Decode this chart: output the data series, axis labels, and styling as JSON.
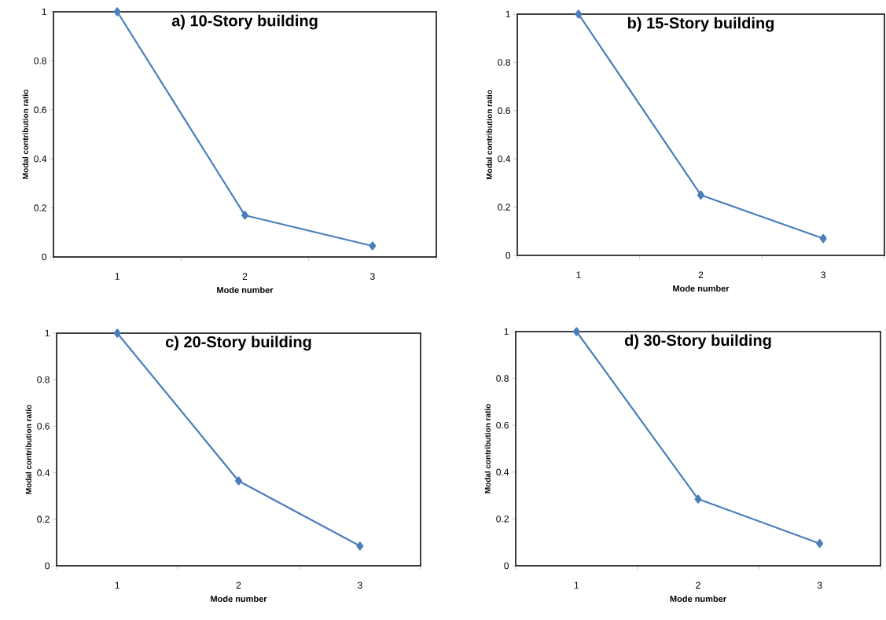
{
  "chart_data": [
    {
      "type": "line",
      "title": "a) 10-Story building",
      "xlabel": "Mode number",
      "ylabel": "Modal contribution ratio",
      "categories": [
        "1",
        "2",
        "3"
      ],
      "values": [
        1,
        0.17,
        0.045
      ],
      "color": "#4a7ebb",
      "marker": "diamond",
      "ylim": [
        0,
        1
      ],
      "yticks": [
        0,
        0.2,
        0.4,
        0.6,
        0.8,
        1
      ],
      "grid": false
    },
    {
      "type": "line",
      "title": "b) 15-Story building",
      "xlabel": "Mode number",
      "ylabel": "Modal contribution ratio",
      "categories": [
        "1",
        "2",
        "3"
      ],
      "values": [
        1,
        0.25,
        0.07
      ],
      "color": "#4a7ebb",
      "marker": "diamond",
      "ylim": [
        0,
        1
      ],
      "yticks": [
        0,
        0.2,
        0.4,
        0.6,
        0.8,
        1
      ],
      "grid": false
    },
    {
      "type": "line",
      "title": "c) 20-Story building",
      "xlabel": "Mode number",
      "ylabel": "Modal contribution ratio",
      "categories": [
        "1",
        "2",
        "3"
      ],
      "values": [
        1,
        0.365,
        0.085
      ],
      "color": "#4a7ebb",
      "marker": "diamond",
      "ylim": [
        0,
        1
      ],
      "yticks": [
        0,
        0.2,
        0.4,
        0.6,
        0.8,
        1
      ],
      "grid": false
    },
    {
      "type": "line",
      "title": "d) 30-Story building",
      "xlabel": "Mode number",
      "ylabel": "Modal contribution ratio",
      "categories": [
        "1",
        "2",
        "3"
      ],
      "values": [
        1,
        0.285,
        0.095
      ],
      "color": "#4a7ebb",
      "marker": "diamond",
      "ylim": [
        0,
        1
      ],
      "yticks": [
        0,
        0.2,
        0.4,
        0.6,
        0.8,
        1
      ],
      "grid": false
    }
  ]
}
